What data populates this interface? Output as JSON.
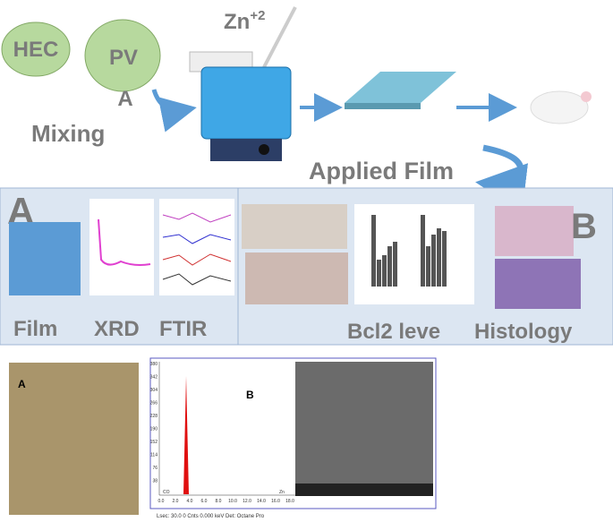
{
  "top": {
    "hec": "HEC",
    "pva_line1": "PV",
    "pva_line2": "A",
    "zn": "Zn",
    "zn_charge": "+2",
    "mixing": "Mixing",
    "applied": "Applied Film"
  },
  "panel": {
    "a": "A",
    "b": "B",
    "labels": [
      "Film",
      "XRD",
      "FTIR",
      "Bcl2 leve",
      "Histology"
    ]
  },
  "bottom": {
    "a": "A",
    "b": "B",
    "edx": {
      "yticks": [
        "380",
        "342",
        "304",
        "266",
        "228",
        "190",
        "152",
        "114",
        "76",
        "38"
      ],
      "xticks": [
        "0.0",
        "2.0",
        "4.0",
        "6.0",
        "8.0",
        "10.0",
        "12.0",
        "14.0",
        "16.0",
        "18.0"
      ],
      "peaks": [
        "CO",
        "Zn"
      ],
      "footer": "Lsec: 30.0    0 Cnts    0.000 keV    Det: Octane Pro"
    }
  }
}
